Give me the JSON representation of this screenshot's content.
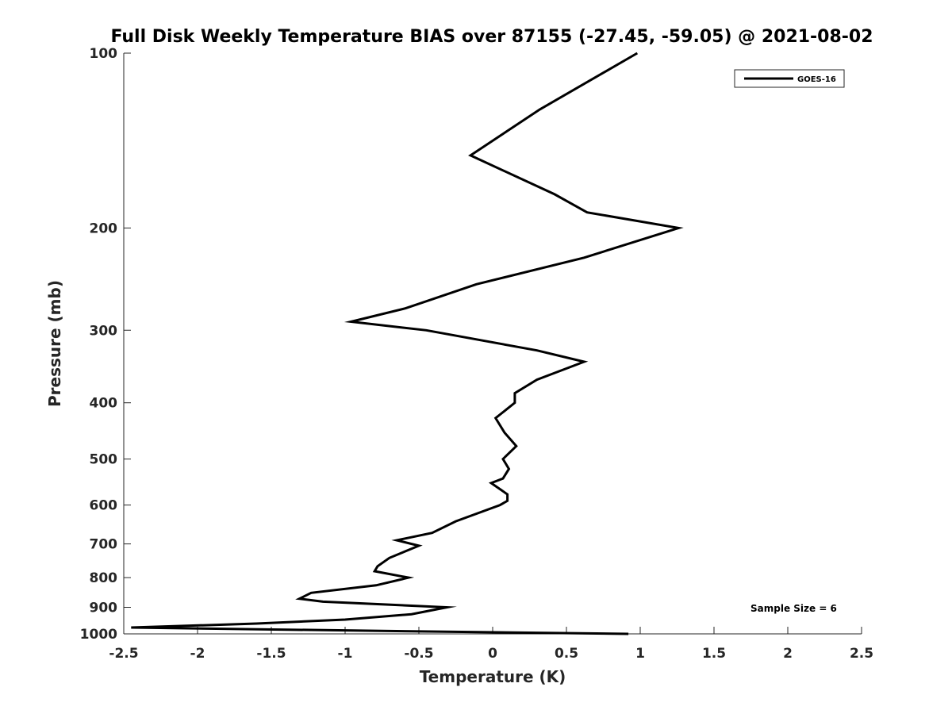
{
  "chart_data": {
    "type": "line",
    "title": "Full Disk Weekly Temperature BIAS over 87155 (-27.45, -59.05) @ 2021-08-02",
    "xlabel": "Temperature (K)",
    "ylabel": "Pressure (mb)",
    "xlim": [
      -2.5,
      2.5
    ],
    "ylim": [
      100,
      1000
    ],
    "y_scale": "log",
    "y_reversed": true,
    "x_ticks": [
      -2.5,
      -2,
      -1.5,
      -1,
      -0.5,
      0,
      0.5,
      1,
      1.5,
      2,
      2.5
    ],
    "x_tick_labels": [
      "-2.5",
      "-2",
      "-1.5",
      "-1",
      "-0.5",
      "0",
      "0.5",
      "1",
      "1.5",
      "2",
      "2.5"
    ],
    "y_ticks": [
      100,
      200,
      300,
      400,
      500,
      600,
      700,
      800,
      900,
      1000
    ],
    "y_tick_labels": [
      "100",
      "200",
      "300",
      "400",
      "500",
      "600",
      "700",
      "800",
      "900",
      "1000"
    ],
    "grid": false,
    "legend_position": "top-right",
    "annotation": "Sample Size = 6",
    "series": [
      {
        "name": "GOES-16",
        "color": "#000000",
        "points": [
          {
            "x": 0.98,
            "y": 100
          },
          {
            "x": 0.32,
            "y": 125
          },
          {
            "x": -0.15,
            "y": 150
          },
          {
            "x": 0.42,
            "y": 175
          },
          {
            "x": 0.64,
            "y": 188
          },
          {
            "x": 1.26,
            "y": 200
          },
          {
            "x": 0.62,
            "y": 225
          },
          {
            "x": -0.11,
            "y": 250
          },
          {
            "x": -0.59,
            "y": 275
          },
          {
            "x": -0.96,
            "y": 290
          },
          {
            "x": -0.45,
            "y": 300
          },
          {
            "x": 0.3,
            "y": 325
          },
          {
            "x": 0.62,
            "y": 340
          },
          {
            "x": 0.3,
            "y": 365
          },
          {
            "x": 0.15,
            "y": 385
          },
          {
            "x": 0.15,
            "y": 400
          },
          {
            "x": 0.02,
            "y": 425
          },
          {
            "x": 0.08,
            "y": 450
          },
          {
            "x": 0.16,
            "y": 475
          },
          {
            "x": 0.07,
            "y": 500
          },
          {
            "x": 0.11,
            "y": 520
          },
          {
            "x": 0.07,
            "y": 540
          },
          {
            "x": -0.01,
            "y": 550
          },
          {
            "x": 0.1,
            "y": 575
          },
          {
            "x": 0.1,
            "y": 590
          },
          {
            "x": 0.05,
            "y": 600
          },
          {
            "x": -0.25,
            "y": 640
          },
          {
            "x": -0.41,
            "y": 670
          },
          {
            "x": -0.65,
            "y": 690
          },
          {
            "x": -0.5,
            "y": 705
          },
          {
            "x": -0.7,
            "y": 740
          },
          {
            "x": -0.78,
            "y": 765
          },
          {
            "x": -0.8,
            "y": 780
          },
          {
            "x": -0.57,
            "y": 800
          },
          {
            "x": -0.79,
            "y": 825
          },
          {
            "x": -1.23,
            "y": 850
          },
          {
            "x": -1.31,
            "y": 870
          },
          {
            "x": -1.15,
            "y": 880
          },
          {
            "x": -0.31,
            "y": 900
          },
          {
            "x": -0.55,
            "y": 925
          },
          {
            "x": -1.0,
            "y": 945
          },
          {
            "x": -1.6,
            "y": 960
          },
          {
            "x": -2.45,
            "y": 975
          },
          {
            "x": -0.55,
            "y": 990
          },
          {
            "x": 0.92,
            "y": 1000
          }
        ]
      }
    ]
  }
}
